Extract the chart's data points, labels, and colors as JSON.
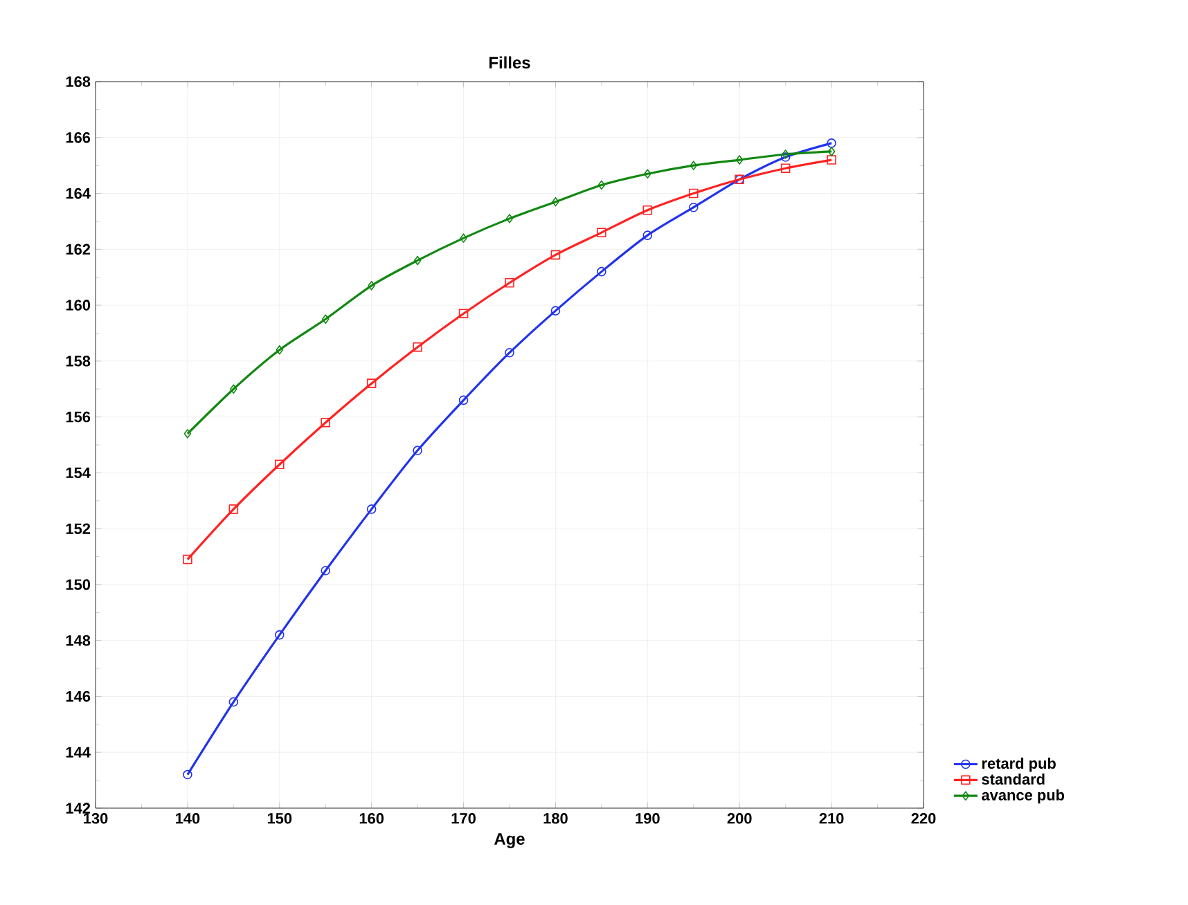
{
  "chart_data": {
    "type": "line",
    "title": "Filles",
    "xlabel": "Age",
    "x": [
      140,
      145,
      150,
      155,
      160,
      165,
      170,
      175,
      180,
      185,
      190,
      195,
      200,
      205,
      210
    ],
    "series": [
      {
        "name": "retard pub",
        "color": "#2233ee",
        "marker": "circle",
        "values": [
          143.2,
          145.8,
          148.2,
          150.5,
          152.7,
          154.8,
          156.6,
          158.3,
          159.8,
          161.2,
          162.5,
          163.5,
          164.5,
          165.3,
          165.8
        ]
      },
      {
        "name": "standard",
        "color": "#ff2222",
        "marker": "square",
        "values": [
          150.9,
          152.7,
          154.3,
          155.8,
          157.2,
          158.5,
          159.7,
          160.8,
          161.8,
          162.6,
          163.4,
          164.0,
          164.5,
          164.9,
          165.2
        ]
      },
      {
        "name": "avance pub",
        "color": "#118811",
        "marker": "diamond",
        "values": [
          155.4,
          157.0,
          158.4,
          159.5,
          160.7,
          161.6,
          162.4,
          163.1,
          163.7,
          164.3,
          164.7,
          165.0,
          165.2,
          165.4,
          165.5
        ]
      }
    ],
    "xlim": [
      130,
      220
    ],
    "xticks": [
      130,
      140,
      150,
      160,
      170,
      180,
      190,
      200,
      210,
      220
    ],
    "ylim": [
      142,
      168
    ],
    "yticks": [
      142,
      144,
      146,
      148,
      150,
      152,
      154,
      156,
      158,
      160,
      162,
      164,
      166,
      168
    ],
    "grid": true,
    "legend": "bottom right",
    "line_style": "solid"
  }
}
